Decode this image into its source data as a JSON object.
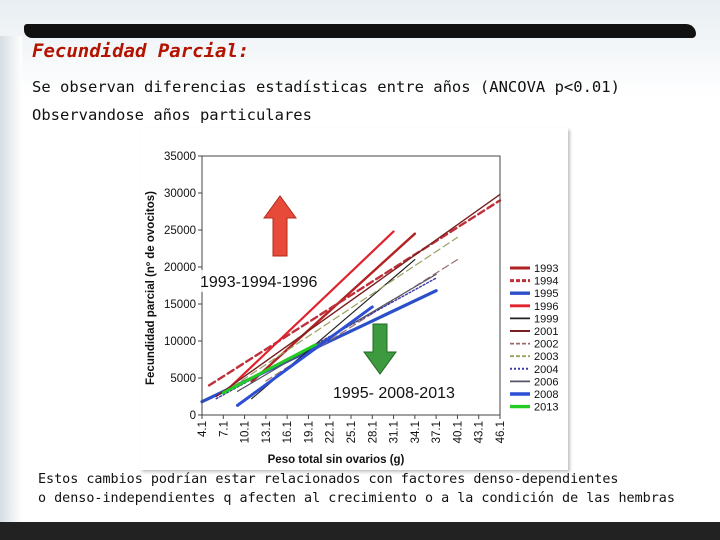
{
  "slide": {
    "title": "Fecundidad Parcial:",
    "line1": "Se observan diferencias estadísticas entre años (ANCOVA p<0.01)",
    "line2": "Observandose años particulares",
    "footer1": "Estos cambios podrían estar relacionados con factores denso-dependientes",
    "footer2": "o denso-independientes q afecten al crecimiento o a la condición de las hembras",
    "annot_up": "1993-1994-1996",
    "annot_down": "1995- 2008-2013",
    "colors": {
      "title": "#b31300",
      "arrow_up": "#e84a3a",
      "arrow_down": "#3d9a3f"
    }
  },
  "chart_data": {
    "type": "line",
    "title": "",
    "xlabel": "Peso total sin ovarios (g)",
    "ylabel": "Fecundidad parcial (nº de ovocitos)",
    "xlim": [
      4.1,
      46.1
    ],
    "ylim": [
      0,
      35000
    ],
    "x_ticks": [
      "4.1",
      "7.1",
      "10.1",
      "13.1",
      "16.1",
      "19.1",
      "22.1",
      "25.1",
      "28.1",
      "31.1",
      "34.1",
      "37.1",
      "40.1",
      "43.1",
      "46.1"
    ],
    "y_ticks": [
      "0",
      "5000",
      "10000",
      "15000",
      "20000",
      "25000",
      "30000",
      "35000"
    ],
    "grid": false,
    "legend_position": "right",
    "series": [
      {
        "name": "1993",
        "color": "#b22222",
        "dash": "solid",
        "width": 2.4,
        "x": [
          11.1,
          34.1
        ],
        "y": [
          4500,
          24500
        ]
      },
      {
        "name": "1994",
        "color": "#c0303a",
        "dash": "dashed",
        "width": 2.4,
        "x": [
          5.1,
          46.1
        ],
        "y": [
          4000,
          29000
        ]
      },
      {
        "name": "1995",
        "color": "#2a4fc9",
        "dash": "solid",
        "width": 3.2,
        "x": [
          4.1,
          37.1
        ],
        "y": [
          1800,
          16800
        ]
      },
      {
        "name": "1996",
        "color": "#e0232d",
        "dash": "solid",
        "width": 2.2,
        "x": [
          8.1,
          31.1
        ],
        "y": [
          3800,
          24800
        ]
      },
      {
        "name": "1999",
        "color": "#222222",
        "dash": "solid",
        "width": 1.2,
        "x": [
          11.1,
          34.1
        ],
        "y": [
          2200,
          21000
        ]
      },
      {
        "name": "2001",
        "color": "#7a2020",
        "dash": "solid",
        "width": 1.4,
        "x": [
          6.1,
          46.1
        ],
        "y": [
          2500,
          29800
        ]
      },
      {
        "name": "2002",
        "color": "#9a6a6a",
        "dash": "dashed",
        "width": 1.2,
        "x": [
          13.1,
          40.1
        ],
        "y": [
          4600,
          21000
        ]
      },
      {
        "name": "2003",
        "color": "#9aa060",
        "dash": "dashed",
        "width": 1.2,
        "x": [
          7.1,
          40.1
        ],
        "y": [
          3000,
          24000
        ]
      },
      {
        "name": "2004",
        "color": "#3a3aa8",
        "dash": "dotted",
        "width": 1.4,
        "x": [
          6.1,
          37.1
        ],
        "y": [
          2200,
          18500
        ]
      },
      {
        "name": "2006",
        "color": "#555566",
        "dash": "solid",
        "width": 1.2,
        "x": [
          9.1,
          37.1
        ],
        "y": [
          3200,
          19000
        ]
      },
      {
        "name": "2008",
        "color": "#2d4fd4",
        "dash": "solid",
        "width": 3.0,
        "x": [
          9.1,
          28.1
        ],
        "y": [
          1300,
          14600
        ]
      },
      {
        "name": "2013",
        "color": "#22cc22",
        "dash": "solid",
        "width": 3.0,
        "x": [
          7.1,
          20.1
        ],
        "y": [
          3000,
          9500
        ]
      }
    ]
  }
}
